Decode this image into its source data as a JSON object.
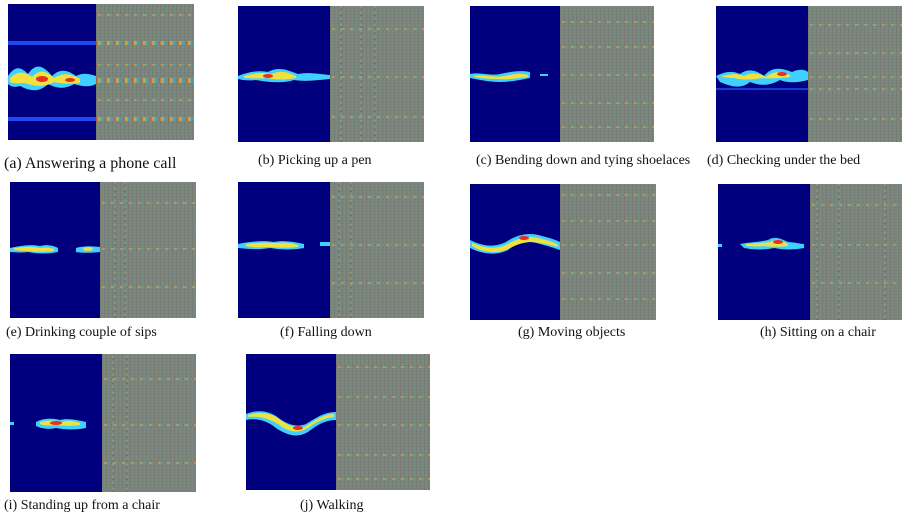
{
  "captions": {
    "a": "(a) Answering a phone call",
    "b": "(b) Picking up a pen",
    "c": "(c) Bending down and tying shoelaces",
    "d": "(d) Checking under the bed",
    "e": "(e) Drinking couple of sips",
    "f": "(f) Falling down",
    "g": "(g) Moving objects",
    "h": "(h) Sitting on a chair",
    "i": "(i) Standing up from a chair",
    "j": "(j) Walking"
  },
  "colors": {
    "spectrogram_background": "#00007e",
    "texture_background": "#7f8a84"
  }
}
